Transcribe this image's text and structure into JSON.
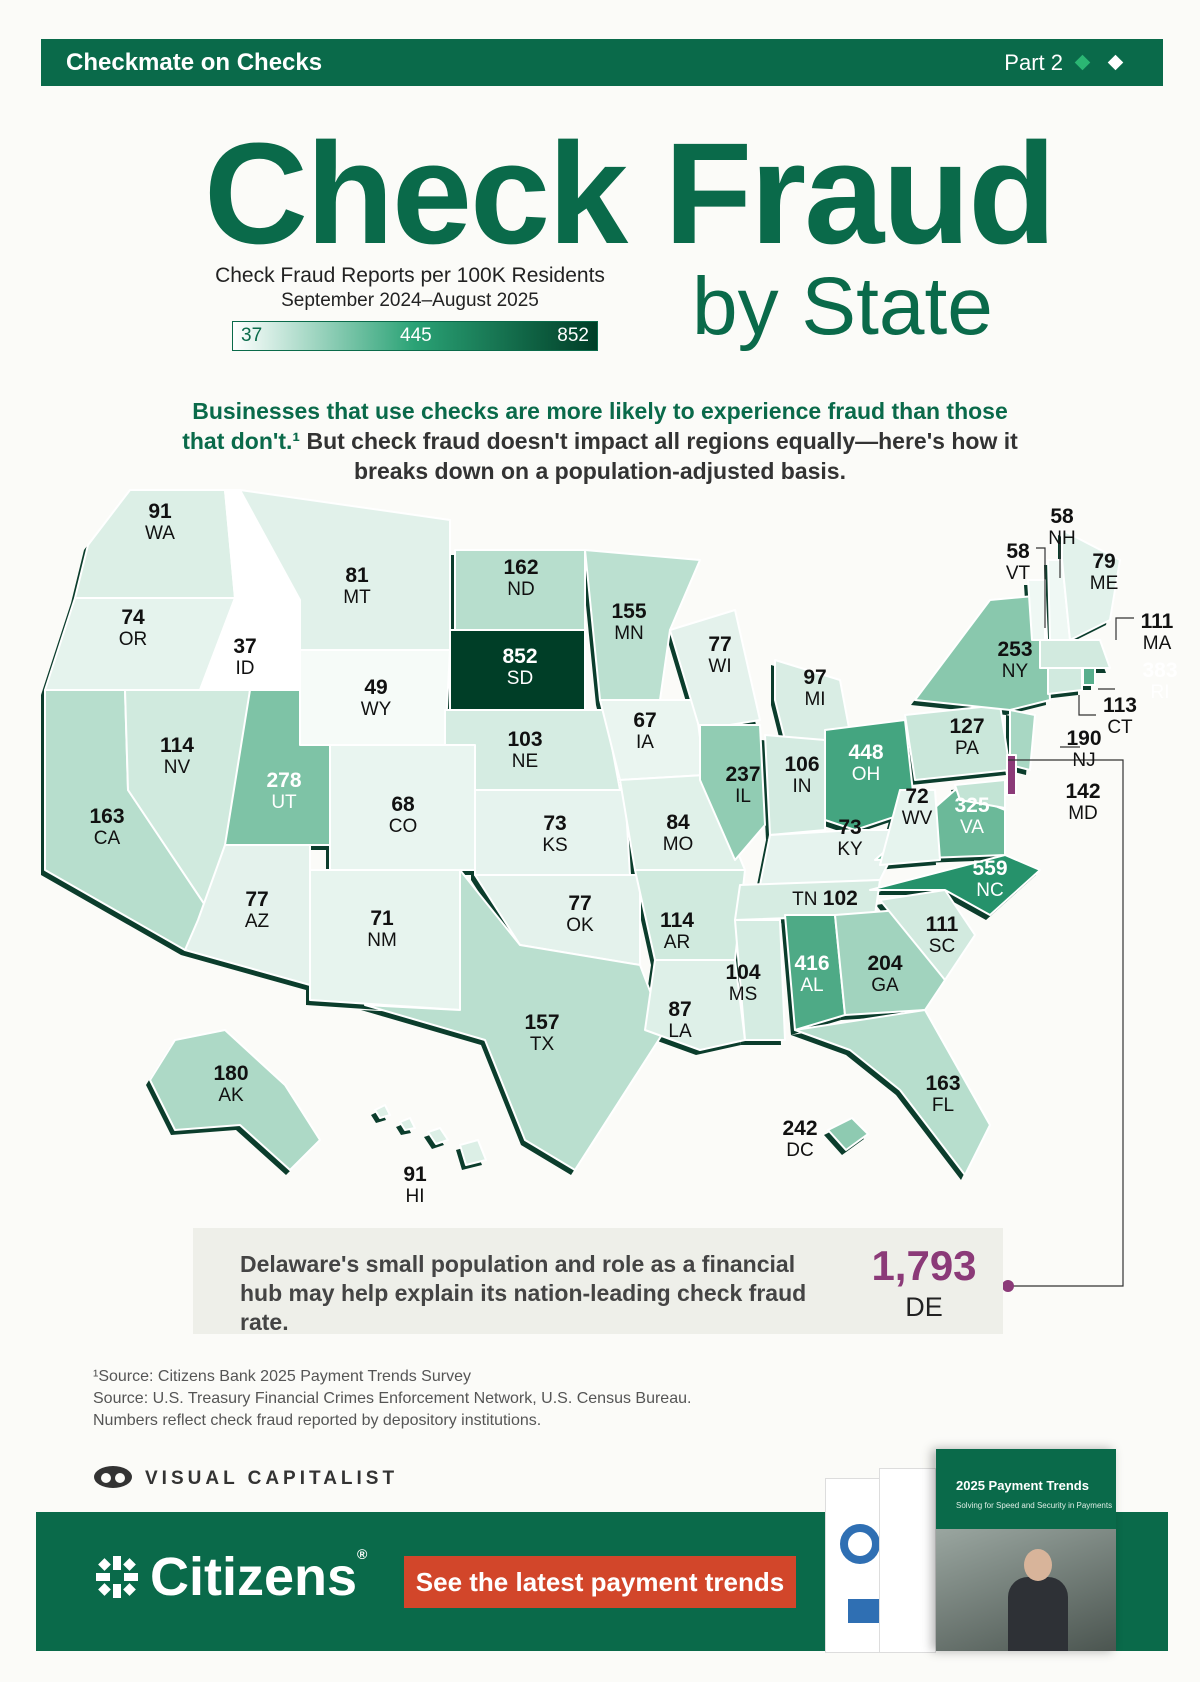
{
  "header": {
    "series": "Checkmate on Checks",
    "part": "Part 2"
  },
  "title": {
    "line1": "Check Fraud",
    "line2": "by State"
  },
  "legend": {
    "title": "Check Fraud Reports per 100K Residents",
    "period": "September 2024–August 2025",
    "min": "37",
    "mid": "445",
    "max": "852"
  },
  "intro": {
    "highlight": "Businesses that use checks are more likely to experience fraud than those that don't.¹",
    "rest": "But check fraud doesn't impact all regions equally—here's how it breaks down on a population-adjusted basis."
  },
  "states": {
    "WA": {
      "abbr": "WA",
      "value": "91"
    },
    "OR": {
      "abbr": "OR",
      "value": "74"
    },
    "CA": {
      "abbr": "CA",
      "value": "163"
    },
    "ID": {
      "abbr": "ID",
      "value": "37"
    },
    "NV": {
      "abbr": "NV",
      "value": "114"
    },
    "MT": {
      "abbr": "MT",
      "value": "81"
    },
    "WY": {
      "abbr": "WY",
      "value": "49"
    },
    "UT": {
      "abbr": "UT",
      "value": "278"
    },
    "AZ": {
      "abbr": "AZ",
      "value": "77"
    },
    "CO": {
      "abbr": "CO",
      "value": "68"
    },
    "NM": {
      "abbr": "NM",
      "value": "71"
    },
    "ND": {
      "abbr": "ND",
      "value": "162"
    },
    "SD": {
      "abbr": "SD",
      "value": "852"
    },
    "NE": {
      "abbr": "NE",
      "value": "103"
    },
    "KS": {
      "abbr": "KS",
      "value": "73"
    },
    "OK": {
      "abbr": "OK",
      "value": "77"
    },
    "TX": {
      "abbr": "TX",
      "value": "157"
    },
    "MN": {
      "abbr": "MN",
      "value": "155"
    },
    "IA": {
      "abbr": "IA",
      "value": "67"
    },
    "MO": {
      "abbr": "MO",
      "value": "84"
    },
    "AR": {
      "abbr": "AR",
      "value": "114"
    },
    "LA": {
      "abbr": "LA",
      "value": "87"
    },
    "WI": {
      "abbr": "WI",
      "value": "77"
    },
    "IL": {
      "abbr": "IL",
      "value": "237"
    },
    "MI": {
      "abbr": "MI",
      "value": "97"
    },
    "IN": {
      "abbr": "IN",
      "value": "106"
    },
    "OH": {
      "abbr": "OH",
      "value": "448"
    },
    "KY": {
      "abbr": "KY",
      "value": "73"
    },
    "TN": {
      "abbr": "TN",
      "value": "102"
    },
    "MS": {
      "abbr": "MS",
      "value": "104"
    },
    "AL": {
      "abbr": "AL",
      "value": "416"
    },
    "GA": {
      "abbr": "GA",
      "value": "204"
    },
    "FL": {
      "abbr": "FL",
      "value": "163"
    },
    "SC": {
      "abbr": "SC",
      "value": "111"
    },
    "NC": {
      "abbr": "NC",
      "value": "559"
    },
    "VA": {
      "abbr": "VA",
      "value": "325"
    },
    "WV": {
      "abbr": "WV",
      "value": "72"
    },
    "PA": {
      "abbr": "PA",
      "value": "127"
    },
    "NY": {
      "abbr": "NY",
      "value": "253"
    },
    "VT": {
      "abbr": "VT",
      "value": "58"
    },
    "NH": {
      "abbr": "NH",
      "value": "58"
    },
    "ME": {
      "abbr": "ME",
      "value": "79"
    },
    "MA": {
      "abbr": "MA",
      "value": "111"
    },
    "RI": {
      "abbr": "RI",
      "value": "383"
    },
    "CT": {
      "abbr": "CT",
      "value": "113"
    },
    "NJ": {
      "abbr": "NJ",
      "value": "190"
    },
    "MD": {
      "abbr": "MD",
      "value": "142"
    },
    "DC": {
      "abbr": "DC",
      "value": "242"
    },
    "AK": {
      "abbr": "AK",
      "value": "180"
    },
    "HI": {
      "abbr": "HI",
      "value": "91"
    },
    "DE": {
      "abbr": "DE",
      "value": "1,793"
    }
  },
  "callout": {
    "text": "Delaware's small population and role as a financial hub may help explain its nation-leading check fraud rate.",
    "value": "1,793",
    "abbr": "DE"
  },
  "sources": {
    "line1": "¹Source: Citizens Bank 2025 Payment Trends Survey",
    "line2": "Source: U.S. Treasury Financial Crimes Enforcement Network,  U.S. Census Bureau.",
    "line3": "Numbers reflect check fraud reported by depository institutions."
  },
  "publisher": "VISUAL CAPITALIST",
  "footer": {
    "brand": "Citizens",
    "cta": "See the latest payment trends",
    "report_title": "2025 Payment Trends",
    "report_subtitle": "Solving for Speed and Security in Payments"
  },
  "colors": {
    "brand_green": "#0a6a4a",
    "cta": "#d2462a",
    "delaware": "#8b3a78"
  }
}
